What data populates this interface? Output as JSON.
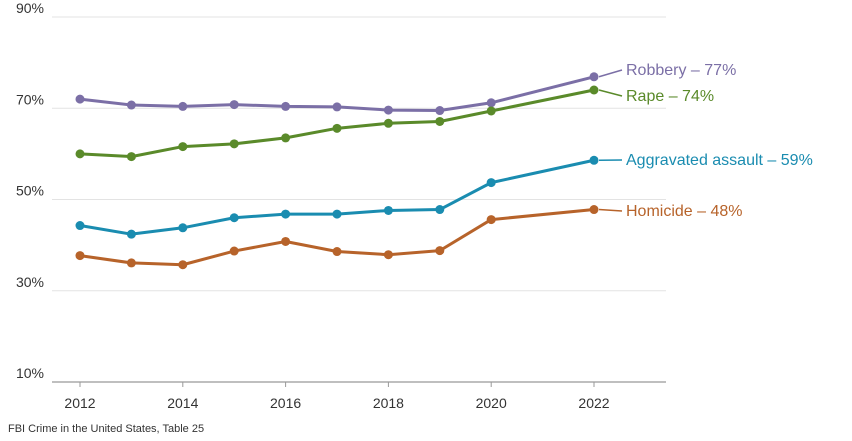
{
  "chart_data": {
    "type": "line",
    "title": "",
    "xlabel": "",
    "ylabel": "",
    "x": [
      2012,
      2013,
      2014,
      2015,
      2016,
      2017,
      2018,
      2019,
      2020,
      2022
    ],
    "xticks": [
      "2012",
      "2014",
      "2016",
      "2018",
      "2020",
      "2022"
    ],
    "xlim": [
      2012,
      2022
    ],
    "yticks": [
      "10%",
      "30%",
      "50%",
      "70%",
      "90%"
    ],
    "ylim": [
      10,
      90
    ],
    "grid": "horizontal",
    "legend": "direct labels at line ends",
    "series": [
      {
        "name": "Robbery",
        "label": "Robbery – 77%",
        "color": "#7b6fa6",
        "values": [
          72.0,
          70.7,
          70.4,
          70.8,
          70.4,
          70.3,
          69.6,
          69.5,
          71.2,
          76.9
        ]
      },
      {
        "name": "Rape",
        "label": "Rape – 74%",
        "color": "#5a8a2a",
        "values": [
          60.0,
          59.4,
          61.6,
          62.2,
          63.5,
          65.6,
          66.7,
          67.1,
          69.4,
          74.0
        ]
      },
      {
        "name": "Aggravated assault",
        "label": "Aggravated assault – 59%",
        "color": "#1a8cb0",
        "values": [
          44.3,
          42.4,
          43.8,
          46.0,
          46.8,
          46.8,
          47.6,
          47.8,
          53.7,
          58.6
        ]
      },
      {
        "name": "Homicide",
        "label": "Homicide – 48%",
        "color": "#b7632a",
        "values": [
          37.7,
          36.1,
          35.7,
          38.7,
          40.8,
          38.6,
          37.9,
          38.8,
          45.6,
          47.8
        ]
      }
    ]
  },
  "source": "FBI Crime in the United States, Table 25"
}
